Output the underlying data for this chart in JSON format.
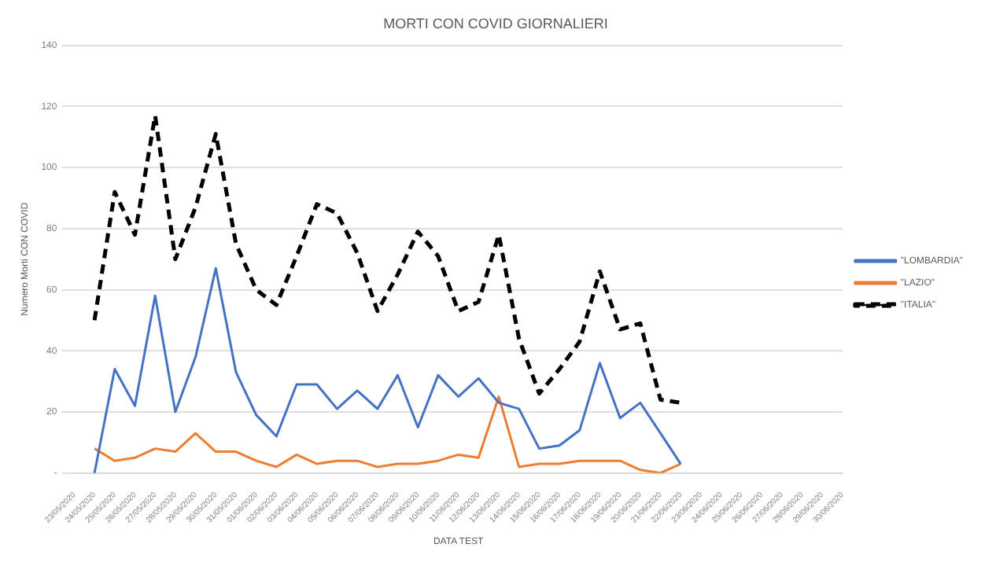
{
  "chart_data": {
    "type": "line",
    "title": "MORTI CON COVID GIORNALIERI",
    "xlabel": "DATA TEST",
    "ylabel": "Numero Morti CON COVID",
    "categories": [
      "23/05/2020",
      "24/05/2020",
      "25/05/2020",
      "26/05/2020",
      "27/05/2020",
      "28/05/2020",
      "29/05/2020",
      "30/05/2020",
      "31/05/2020",
      "01/06/2020",
      "02/06/2020",
      "03/06/2020",
      "04/06/2020",
      "05/06/2020",
      "06/06/2020",
      "07/06/2020",
      "08/06/2020",
      "09/06/2020",
      "10/06/2020",
      "11/06/2020",
      "12/06/2020",
      "13/06/2020",
      "14/06/2020",
      "15/06/2020",
      "16/06/2020",
      "17/06/2020",
      "18/06/2020",
      "19/06/2020",
      "20/06/2020",
      "21/06/2020",
      "22/06/2020",
      "23/06/2020",
      "24/06/2020",
      "25/06/2020",
      "26/06/2020",
      "27/06/2020",
      "28/06/2020",
      "29/06/2020",
      "30/06/2020"
    ],
    "series": [
      {
        "name": "\"LOMBARDIA\"",
        "color": "#4472c4",
        "values": [
          null,
          0,
          34,
          22,
          58,
          20,
          38,
          67,
          33,
          19,
          12,
          29,
          29,
          21,
          27,
          21,
          32,
          15,
          32,
          25,
          31,
          23,
          21,
          8,
          9,
          14,
          36,
          18,
          23,
          13,
          3,
          null,
          null,
          null,
          null,
          null,
          null,
          null,
          null
        ]
      },
      {
        "name": "\"LAZIO\"",
        "color": "#ed7d31",
        "values": [
          null,
          8,
          4,
          5,
          8,
          7,
          13,
          7,
          7,
          4,
          2,
          6,
          3,
          4,
          4,
          2,
          3,
          3,
          4,
          6,
          5,
          25,
          2,
          3,
          3,
          4,
          4,
          4,
          1,
          0,
          3,
          null,
          null,
          null,
          null,
          null,
          null,
          null,
          null
        ]
      },
      {
        "name": "\"ITALIA\"",
        "color": "#000000",
        "line_style": "dashed",
        "values": [
          null,
          50,
          92,
          78,
          117,
          70,
          87,
          111,
          75,
          60,
          55,
          71,
          88,
          85,
          72,
          53,
          65,
          79,
          71,
          53,
          56,
          78,
          44,
          26,
          34,
          43,
          66,
          47,
          49,
          24,
          23,
          null,
          null,
          null,
          null,
          null,
          null,
          null,
          null
        ]
      }
    ],
    "ylim": [
      0,
      140
    ],
    "yticks": [
      {
        "value": 0,
        "label": "-"
      },
      20,
      40,
      60,
      80,
      100,
      120,
      140
    ],
    "grid": "y",
    "legend": "right",
    "marker": "none"
  }
}
